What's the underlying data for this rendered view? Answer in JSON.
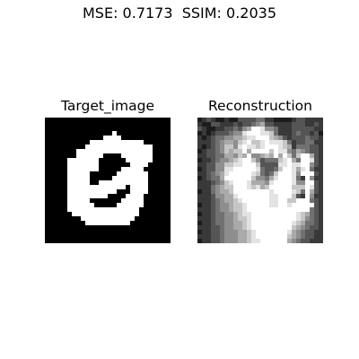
{
  "chart_data": {
    "type": "heatmap",
    "suptitle": "MSE: 0.7173  SSIM: 0.2035",
    "metrics": {
      "mse": 0.7173,
      "ssim": 0.2035
    },
    "panels": [
      {
        "title": "Target_image",
        "grid_size": 28,
        "cmap": "gray",
        "value_range": [
          0,
          1
        ],
        "pixels": [
          "0000000000000000000000000000",
          "0000000000000000000000000000",
          "0000000000000000000000000000",
          "0000000000000001000000000000",
          "0000000000000111100000000000",
          "0000000000111111111111000000",
          "0000000001111111111111110000",
          "0000000111111111111111110000",
          "0000000111111000011111110000",
          "0000011111110000001111110000",
          "0000011111110000000111100000",
          "0000011111110000011111000000",
          "0000011111000000111111100000",
          "0000011111000001111111100000",
          "0000011111001111111111100000",
          "0000011111111111110111100000",
          "0000011111111111000111100000",
          "0000011111111100001111000000",
          "0000011111000000011111000000",
          "0000011111100000111111000000",
          "0000011111111111111110000000",
          "0000001111111111111110000000",
          "0000000011111111111100000000",
          "0000000001111111111000000000",
          "0000000000000000000000000000",
          "0000000000000000000000000000",
          "0000000000000000000000000000",
          "0000000000000000000000000000"
        ]
      },
      {
        "title": "Reconstruction",
        "grid_size": 28,
        "cmap": "gray",
        "value_range": [
          0,
          9
        ],
        "pixels": [
          "1232112113333442211112332222",
          "2113322232334563322223332232",
          "3211223343569985542223333322",
          "1212333455899988742223433231",
          "2123445566788999765323334332",
          "2223456657897789888742334422",
          "2123457758988789998762444332",
          "1233457677969999798854654332",
          "2233446657695567696974799632",
          "1223455678997534447896499832",
          "2233557788999733338898899532",
          "1233558899999843347998689422",
          "2234568999998743479998599932",
          "1234469999997554689998429522",
          "2223457899986665899998559932",
          "2224567799987867999997779832",
          "1224566799999999899998749632",
          "2223556689999999889997329522",
          "2223456678999999889977999432",
          "1223455677899999889989999932",
          "2223455677899999999999999432",
          "1223445567889999999999876432",
          "2223445567789999999999875432",
          "1223445566789999999998764432",
          "2223345566789999999997654332",
          "1223345556678999999986543322",
          "2223345556678999999976543322",
          "1223345556678899999965433222"
        ]
      }
    ]
  }
}
